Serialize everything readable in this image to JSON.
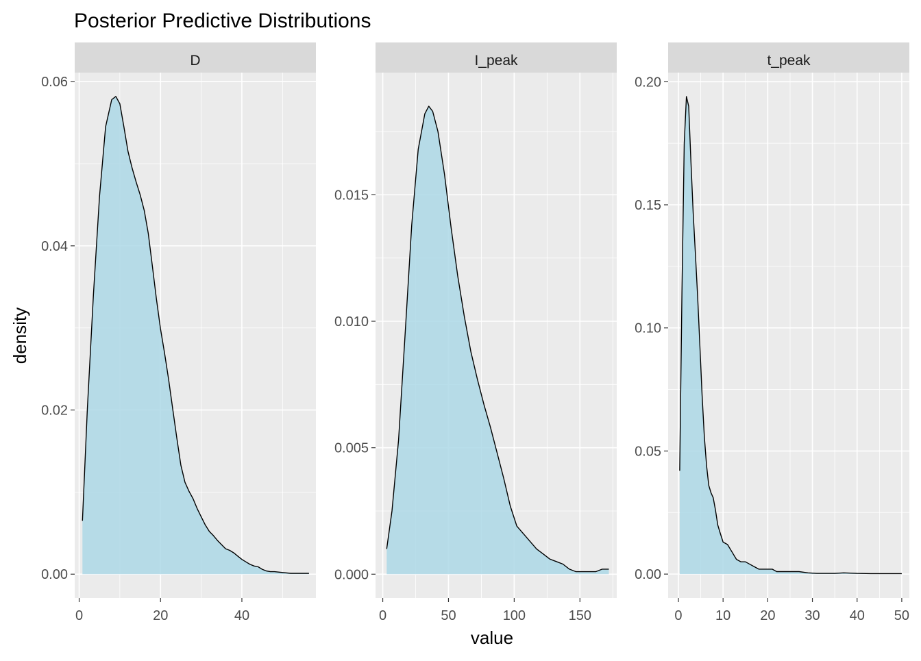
{
  "title": "Posterior Predictive Distributions",
  "xlabel": "value",
  "ylabel": "density",
  "colors": {
    "panel_bg": "#ebebeb",
    "strip_bg": "#d9d9d9",
    "grid": "#ffffff",
    "fill": "#add8e6",
    "line": "#000000",
    "tick_text": "#4d4d4d",
    "strip_text": "#1a1a1a",
    "title_text": "#000000"
  },
  "chart_data": [
    {
      "type": "area",
      "facet": "D",
      "xlim": [
        -1.1,
        58.2
      ],
      "ylim": [
        -0.0029,
        0.0611
      ],
      "x_ticks": [
        0,
        20,
        40
      ],
      "x_tick_labels": [
        "0",
        "20",
        "40"
      ],
      "y_ticks": [
        0,
        0.02,
        0.04,
        0.06
      ],
      "y_tick_labels": [
        "0.00",
        "0.02",
        "0.04",
        "0.06"
      ],
      "x": [
        0.8,
        2,
        3.5,
        5,
        6.5,
        8,
        9,
        10,
        11,
        12,
        13,
        14,
        15,
        16,
        17,
        18,
        19,
        20,
        21,
        22,
        23,
        24,
        25,
        26,
        27,
        28,
        29,
        30,
        31,
        32,
        33,
        34,
        35,
        36,
        37,
        38,
        39,
        40,
        41,
        42,
        43,
        44,
        45,
        46,
        47,
        48,
        50,
        52,
        54,
        56.5
      ],
      "y": [
        0.0065,
        0.02,
        0.034,
        0.046,
        0.0545,
        0.0578,
        0.0582,
        0.0573,
        0.0545,
        0.0515,
        0.0495,
        0.0478,
        0.0462,
        0.0443,
        0.0415,
        0.0375,
        0.0335,
        0.0299,
        0.0269,
        0.0237,
        0.0201,
        0.0166,
        0.0133,
        0.0112,
        0.0101,
        0.0092,
        0.008,
        0.007,
        0.006,
        0.0052,
        0.0047,
        0.0041,
        0.0036,
        0.0031,
        0.0029,
        0.0026,
        0.0022,
        0.0018,
        0.0015,
        0.0012,
        0.001,
        0.0009,
        0.0006,
        0.0004,
        0.0003,
        0.0003,
        0.0002,
        0.0001,
        0.0001,
        0.0001
      ]
    },
    {
      "type": "area",
      "facet": "I_peak",
      "xlim": [
        -5.5,
        178
      ],
      "ylim": [
        -0.00094,
        0.01983
      ],
      "x_ticks": [
        0,
        50,
        100,
        150
      ],
      "x_tick_labels": [
        "0",
        "50",
        "100",
        "150"
      ],
      "y_ticks": [
        0,
        0.005,
        0.01,
        0.015
      ],
      "y_tick_labels": [
        "0.000",
        "0.005",
        "0.010",
        "0.015"
      ],
      "x": [
        3,
        7,
        12,
        17,
        22,
        27,
        32,
        35,
        38,
        42,
        47,
        52,
        57,
        62,
        67,
        72,
        77,
        82,
        87,
        92,
        97,
        102,
        107,
        112,
        117,
        122,
        127,
        132,
        137,
        142,
        147,
        152,
        157,
        162,
        167,
        172
      ],
      "y": [
        0.001,
        0.0025,
        0.0053,
        0.0095,
        0.0138,
        0.0168,
        0.0182,
        0.0185,
        0.0183,
        0.0175,
        0.0158,
        0.0137,
        0.0118,
        0.0102,
        0.0088,
        0.0077,
        0.0067,
        0.0058,
        0.0048,
        0.0038,
        0.0027,
        0.0019,
        0.0016,
        0.0013,
        0.001,
        0.0008,
        0.0006,
        0.0005,
        0.0004,
        0.0002,
        0.0001,
        0.0001,
        0.0001,
        0.0001,
        0.0002,
        0.0002
      ]
    },
    {
      "type": "area",
      "facet": "t_peak",
      "xlim": [
        -2.3,
        51.7
      ],
      "ylim": [
        -0.0097,
        0.2037
      ],
      "x_ticks": [
        0,
        10,
        20,
        30,
        40,
        50
      ],
      "x_tick_labels": [
        "0",
        "10",
        "20",
        "30",
        "40",
        "50"
      ],
      "y_ticks": [
        0,
        0.05,
        0.1,
        0.15,
        0.2
      ],
      "y_tick_labels": [
        "0.00",
        "0.05",
        "0.10",
        "0.15",
        "0.20"
      ],
      "x": [
        0.3,
        0.8,
        1.3,
        1.8,
        2.3,
        2.8,
        3.3,
        3.8,
        4.3,
        4.8,
        5.3,
        5.8,
        6.3,
        6.8,
        7.3,
        7.8,
        8.3,
        8.8,
        9.3,
        10,
        11,
        12,
        13,
        14,
        15,
        16,
        17,
        18,
        19,
        20,
        21,
        22,
        23,
        25,
        27,
        29,
        31,
        33,
        35,
        37,
        40,
        43,
        46,
        50
      ],
      "y": [
        0.042,
        0.115,
        0.175,
        0.194,
        0.19,
        0.168,
        0.147,
        0.13,
        0.113,
        0.093,
        0.073,
        0.056,
        0.044,
        0.036,
        0.033,
        0.031,
        0.026,
        0.02,
        0.017,
        0.013,
        0.012,
        0.009,
        0.006,
        0.005,
        0.005,
        0.004,
        0.003,
        0.002,
        0.002,
        0.002,
        0.002,
        0.001,
        0.001,
        0.001,
        0.001,
        0.0005,
        0.0003,
        0.0003,
        0.0003,
        0.0005,
        0.0003,
        0.0002,
        0.0002,
        0.0002
      ]
    }
  ]
}
